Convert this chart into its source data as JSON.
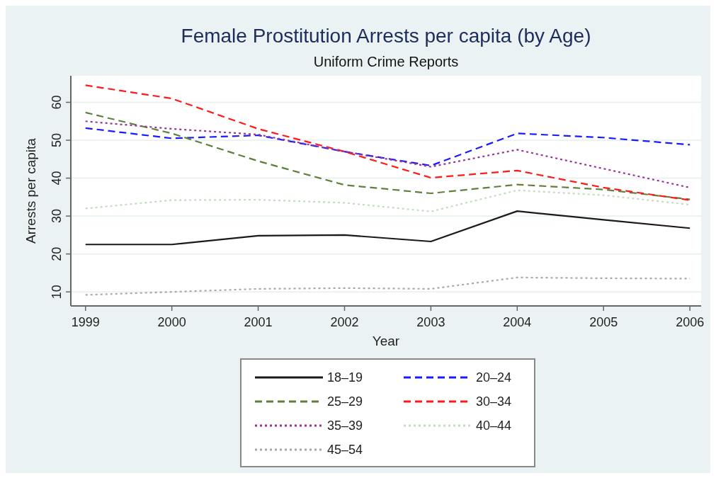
{
  "chart_data": {
    "type": "line",
    "title": "Female Prostitution Arrests per capita (by Age)",
    "subtitle": "Uniform Crime Reports",
    "xlabel": "Year",
    "ylabel": "Arrests per capita",
    "x": [
      1999,
      2000,
      2001,
      2002,
      2003,
      2004,
      2005,
      2006
    ],
    "xlim": [
      1998.83,
      2006.13
    ],
    "xticks": [
      1999,
      2000,
      2001,
      2002,
      2003,
      2004,
      2005,
      2006
    ],
    "ylim": [
      6.3,
      67
    ],
    "yticks": [
      10,
      20,
      30,
      40,
      50,
      60
    ],
    "grid": "y",
    "legend": "bottom",
    "marker": "none",
    "series": [
      {
        "name": "18–19",
        "color": "#1a1a1a",
        "line_style": "solid",
        "values": [
          22.5,
          22.5,
          24.8,
          25,
          23.3,
          31.3,
          29,
          26.8
        ]
      },
      {
        "name": "20–24",
        "color": "#1a1aff",
        "line_style": "dashed",
        "values": [
          53.2,
          50.5,
          51.3,
          47,
          43.3,
          51.8,
          50.7,
          48.8
        ]
      },
      {
        "name": "25–29",
        "color": "#5f7f3a",
        "line_style": "dashed",
        "values": [
          57.3,
          51.8,
          44.5,
          38.2,
          36,
          38.3,
          37,
          34.4
        ]
      },
      {
        "name": "30–34",
        "color": "#ff1a1a",
        "line_style": "dashed",
        "values": [
          64.5,
          61,
          53,
          47,
          40.1,
          42,
          37.5,
          34.2
        ]
      },
      {
        "name": "35–39",
        "color": "#993399",
        "line_style": "dotted",
        "values": [
          55,
          53,
          51.5,
          47,
          43,
          47.5,
          42.5,
          37.5
        ]
      },
      {
        "name": "40–44",
        "color": "#c4dcc0",
        "line_style": "dotted",
        "values": [
          32,
          34.2,
          34.3,
          33.5,
          31.2,
          36.8,
          35.5,
          33
        ]
      },
      {
        "name": "45–54",
        "color": "#a8a8a8",
        "line_style": "dotted",
        "values": [
          9.2,
          10,
          10.8,
          11,
          10.8,
          13.8,
          13.6,
          13.5
        ]
      }
    ]
  }
}
